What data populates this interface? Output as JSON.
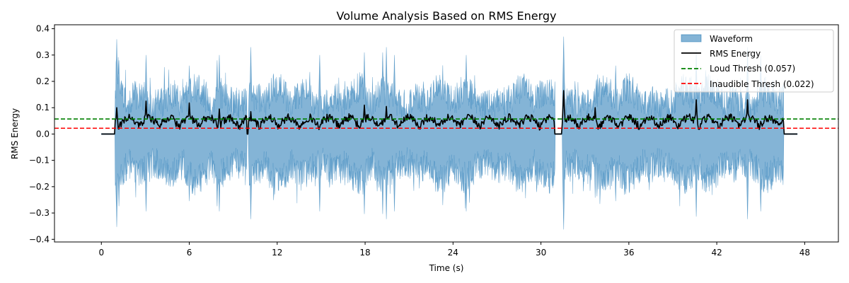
{
  "chart_data": {
    "type": "line",
    "title": "Volume Analysis Based on RMS Energy",
    "xlabel": "Time (s)",
    "ylabel": "RMS Energy",
    "xlim": [
      -3.2,
      50.3
    ],
    "ylim": [
      -0.41,
      0.415
    ],
    "x_ticks": [
      0,
      6,
      12,
      18,
      24,
      30,
      36,
      42,
      48
    ],
    "y_ticks": [
      -0.4,
      -0.3,
      -0.2,
      -0.1,
      0.0,
      0.1,
      0.2,
      0.3,
      0.4
    ],
    "x_tick_labels": [
      "0",
      "6",
      "12",
      "18",
      "24",
      "30",
      "36",
      "42",
      "48"
    ],
    "y_tick_labels": [
      "−0.4",
      "−0.3",
      "−0.2",
      "−0.1",
      "0.0",
      "0.1",
      "0.2",
      "0.3",
      "0.4"
    ],
    "grid": false,
    "legend_position": "top-right",
    "duration_s": 47.5,
    "speech_segments": [
      [
        0.95,
        9.95
      ],
      [
        10.05,
        30.95
      ],
      [
        31.45,
        46.55
      ]
    ],
    "waveform_peaks": [
      {
        "t": 1.05,
        "amp": 0.36
      },
      {
        "t": 1.2,
        "amp": 0.28
      },
      {
        "t": 3.05,
        "amp": 0.3
      },
      {
        "t": 6.0,
        "amp": 0.26
      },
      {
        "t": 7.9,
        "amp": 0.28
      },
      {
        "t": 8.05,
        "amp": 0.3
      },
      {
        "t": 10.2,
        "amp": 0.33
      },
      {
        "t": 14.9,
        "amp": 0.3
      },
      {
        "t": 17.95,
        "amp": 0.31
      },
      {
        "t": 19.2,
        "amp": 0.31
      },
      {
        "t": 19.45,
        "amp": 0.33
      },
      {
        "t": 20.0,
        "amp": 0.3
      },
      {
        "t": 24.9,
        "amp": 0.3
      },
      {
        "t": 31.55,
        "amp": 0.37
      },
      {
        "t": 35.1,
        "amp": 0.26
      },
      {
        "t": 40.6,
        "amp": 0.32
      },
      {
        "t": 44.1,
        "amp": 0.33
      },
      {
        "t": 45.0,
        "amp": 0.3
      }
    ],
    "rms_peaks": [
      {
        "t": 1.05,
        "v": 0.1
      },
      {
        "t": 3.05,
        "v": 0.125
      },
      {
        "t": 6.0,
        "v": 0.118
      },
      {
        "t": 8.05,
        "v": 0.095
      },
      {
        "t": 10.2,
        "v": 0.085
      },
      {
        "t": 17.95,
        "v": 0.11
      },
      {
        "t": 19.45,
        "v": 0.105
      },
      {
        "t": 31.55,
        "v": 0.165
      },
      {
        "t": 33.7,
        "v": 0.1
      },
      {
        "t": 40.6,
        "v": 0.13
      },
      {
        "t": 44.1,
        "v": 0.13
      }
    ],
    "thresholds": [
      {
        "name": "Loud Thresh (0.057)",
        "value": 0.057,
        "color": "#008000",
        "dash": true
      },
      {
        "name": "Inaudible Thresh (0.022)",
        "value": 0.022,
        "color": "#ff0000",
        "dash": true
      }
    ],
    "series": [
      {
        "name": "Waveform",
        "kind": "area",
        "color": "#1f77b4",
        "alpha": 0.55
      },
      {
        "name": "RMS Energy",
        "kind": "line",
        "color": "#000000"
      }
    ],
    "legend": [
      "Waveform",
      "RMS Energy",
      "Loud Thresh (0.057)",
      "Inaudible Thresh (0.022)"
    ]
  }
}
